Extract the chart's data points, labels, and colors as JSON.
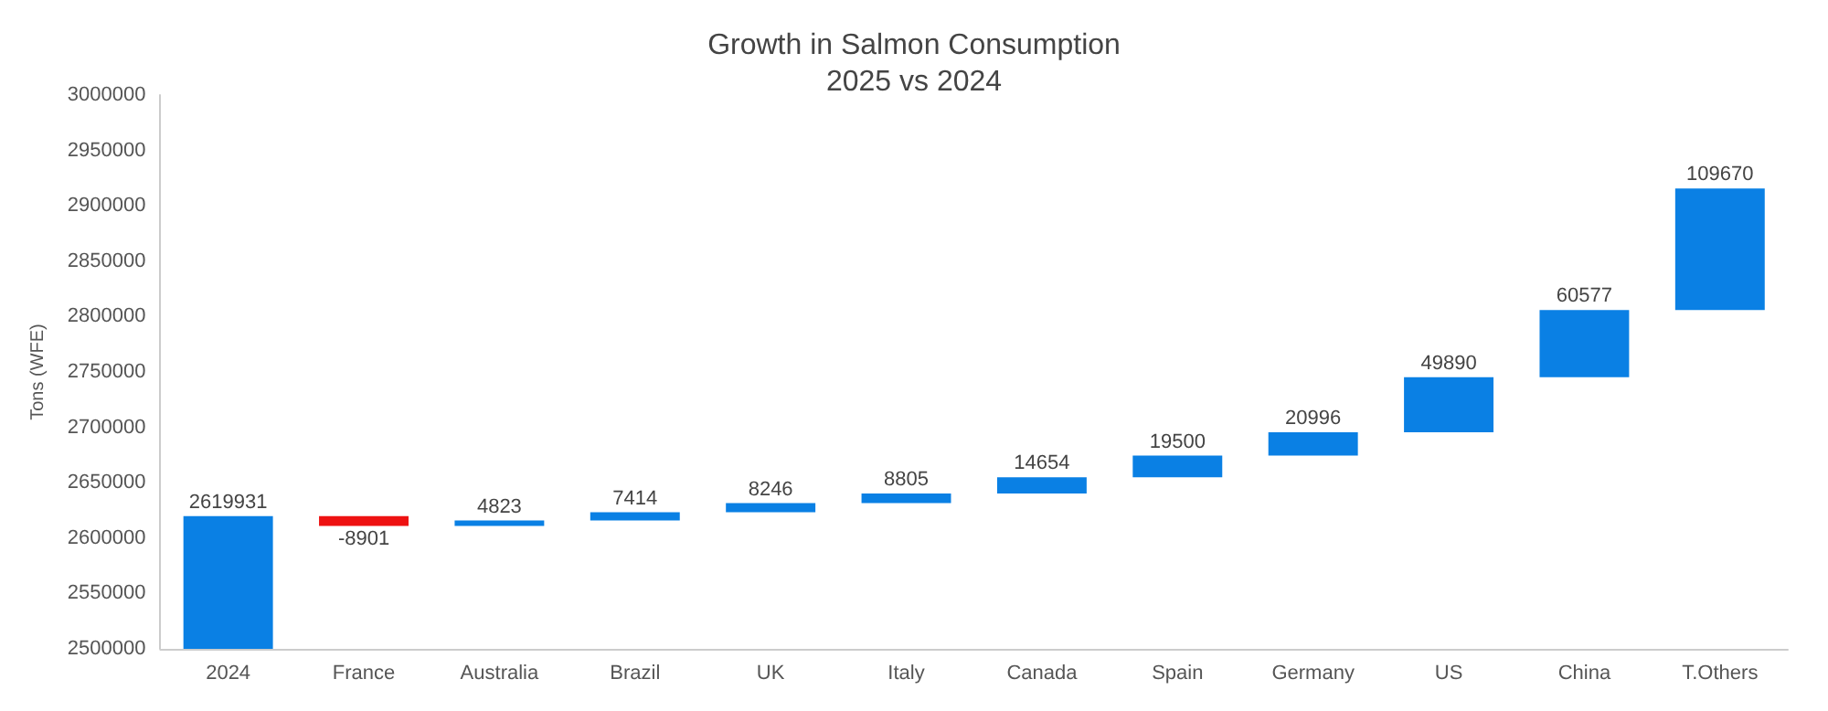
{
  "chart_data": {
    "type": "bar",
    "title": "Growth in Salmon Consumption",
    "subtitle": "2025 vs 2024",
    "ylabel": "Tons (WFE)",
    "categories": [
      "2024",
      "France",
      "Australia",
      "Brazil",
      "UK",
      "Italy",
      "Canada",
      "Spain",
      "Germany",
      "US",
      "China",
      "T.Others"
    ],
    "values": [
      2619931,
      -8901,
      4823,
      7414,
      8246,
      8805,
      14654,
      19500,
      20996,
      49890,
      60577,
      109670
    ],
    "base": [
      0,
      2619931,
      2611030,
      2615853,
      2623267,
      2631513,
      2640318,
      2654972,
      2674472,
      2695468,
      2745358,
      2805935
    ],
    "colors": [
      "#0a80e4",
      "#ee1111",
      "#0a80e4",
      "#0a80e4",
      "#0a80e4",
      "#0a80e4",
      "#0a80e4",
      "#0a80e4",
      "#0a80e4",
      "#0a80e4",
      "#0a80e4",
      "#0a80e4"
    ],
    "ylim": [
      2500000,
      3000000
    ],
    "yticks": [
      2500000,
      2550000,
      2600000,
      2650000,
      2700000,
      2750000,
      2800000,
      2850000,
      2900000,
      2950000,
      3000000
    ],
    "data_labels": true,
    "grid": false
  }
}
